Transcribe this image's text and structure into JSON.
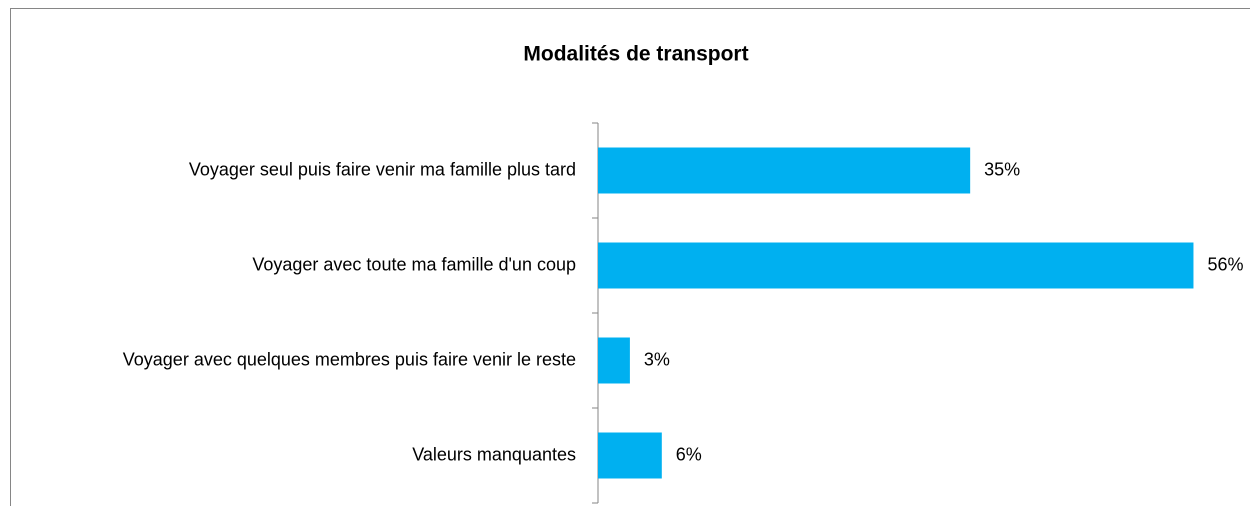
{
  "chart_data": {
    "type": "barh",
    "title": "Modalités de transport",
    "categories": [
      "Voyager seul puis faire venir ma famille plus tard",
      "Voyager avec toute ma famille d'un coup",
      "Voyager avec quelques membres puis faire venir le reste",
      "Valeurs manquantes"
    ],
    "values": [
      35,
      56,
      3,
      6
    ],
    "value_labels": [
      "35%",
      "56%",
      "3%",
      "6%"
    ],
    "color": "#00b0f0",
    "xlim": [
      0,
      60
    ]
  }
}
